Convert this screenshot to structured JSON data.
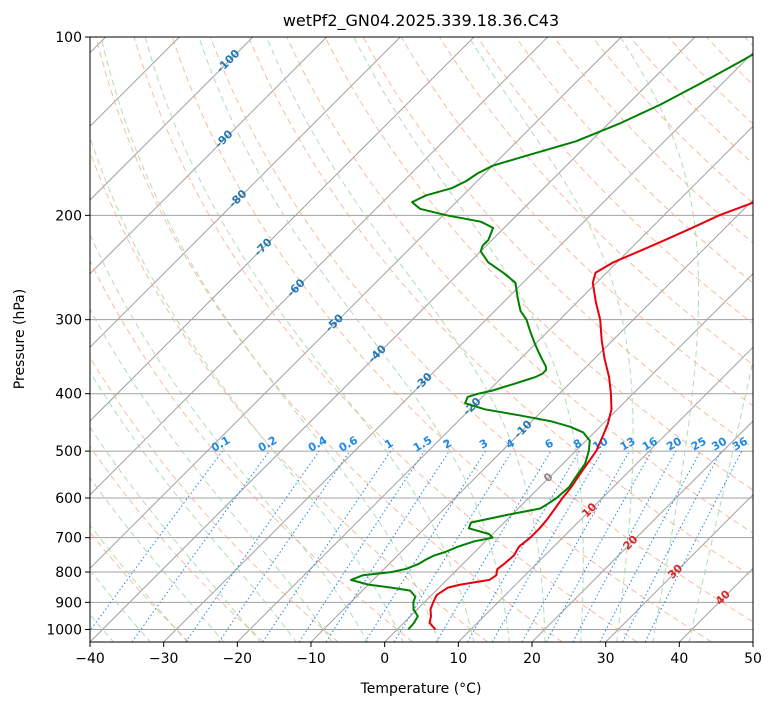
{
  "chart_data": {
    "type": "line",
    "title": "wetPf2_GN04.2025.339.18.36.C43",
    "xlabel": "Temperature (°C)",
    "ylabel": "Pressure (hPa)",
    "xlim": [
      -40,
      50
    ],
    "ylim": [
      1050,
      100
    ],
    "y_scale": "log",
    "grid": true,
    "x_ticks": [
      "−40",
      "−30",
      "−20",
      "−10",
      "0",
      "10",
      "20",
      "30",
      "40",
      "50"
    ],
    "y_ticks": [
      "100",
      "200",
      "300",
      "400",
      "500",
      "600",
      "700",
      "800",
      "900",
      "1000"
    ],
    "colors": {
      "temperature": "#e8000b",
      "dewpoint": "#008000",
      "isotherm": "#a0a0a0",
      "dry_adiabat": "#f4a582",
      "moist_adiabat": "#9fd49f",
      "mixing_ratio": "#1e88e5",
      "dry_label": "#d62728",
      "moist_label": "#1f77b4"
    },
    "series": [
      {
        "p": [
          1000,
          975,
          950,
          925,
          900,
          875,
          850,
          840,
          825,
          810,
          800,
          790,
          775,
          750,
          725,
          700,
          675,
          650,
          625,
          600,
          575,
          550,
          525,
          500,
          475,
          450,
          425,
          400,
          375,
          350,
          325,
          300,
          280,
          260,
          250,
          240,
          230,
          220,
          210,
          200,
          190,
          180,
          170,
          160,
          150,
          140,
          130,
          120,
          110,
          100
        ],
        "t": [
          5.2,
          3.5,
          2.8,
          1.8,
          1.2,
          0.7,
          1.2,
          2.5,
          5.8,
          6.1,
          5.7,
          5.4,
          5.6,
          5.8,
          5.3,
          5.6,
          5.6,
          5.4,
          5.0,
          4.6,
          4.3,
          3.8,
          3.3,
          2.8,
          1.8,
          0.7,
          -0.8,
          -3.0,
          -5.5,
          -8.5,
          -11.5,
          -14.5,
          -17.5,
          -20.5,
          -21.5,
          -20.5,
          -18.5,
          -16.5,
          -14.5,
          -12.5,
          -9.5,
          -6.5,
          -4.0,
          -2.0,
          -0.5,
          0.5,
          1.2,
          1.8,
          2.2,
          2.5
        ]
      },
      {
        "p": [
          1000,
          975,
          950,
          925,
          900,
          880,
          860,
          850,
          840,
          825,
          810,
          800,
          790,
          775,
          760,
          750,
          740,
          725,
          710,
          700,
          690,
          675,
          660,
          650,
          640,
          625,
          610,
          600,
          575,
          550,
          525,
          500,
          480,
          465,
          455,
          445,
          435,
          425,
          415,
          405,
          400,
          395,
          390,
          385,
          380,
          375,
          370,
          365,
          360,
          350,
          340,
          330,
          320,
          310,
          300,
          290,
          280,
          270,
          260,
          250,
          240,
          230,
          225,
          220,
          210,
          205,
          200,
          195,
          190,
          185,
          180,
          175,
          170,
          165,
          160,
          150,
          140,
          130,
          120,
          110,
          100
        ],
        "td": [
          1.5,
          1.4,
          1.0,
          -0.5,
          -1.5,
          -2.0,
          -3.5,
          -6.5,
          -10.0,
          -13.0,
          -12.0,
          -8.5,
          -7.0,
          -6.0,
          -5.5,
          -5.0,
          -4.0,
          -3.0,
          -1.5,
          0.5,
          -0.5,
          -4.0,
          -4.5,
          -2.5,
          -0.5,
          3.0,
          3.5,
          3.8,
          4.0,
          3.5,
          3.0,
          1.8,
          0.5,
          -1.5,
          -4.0,
          -7.5,
          -12.5,
          -18.0,
          -21.5,
          -22.0,
          -21.0,
          -19.5,
          -18.5,
          -17.5,
          -16.5,
          -15.5,
          -15.0,
          -15.0,
          -15.5,
          -17.0,
          -18.5,
          -20.0,
          -21.5,
          -23.0,
          -24.5,
          -26.5,
          -28.0,
          -29.5,
          -31.0,
          -34.0,
          -37.5,
          -40.0,
          -40.5,
          -40.5,
          -41.5,
          -44.0,
          -49.5,
          -54.0,
          -56.0,
          -55.0,
          -52.5,
          -51.5,
          -51.0,
          -50.0,
          -47.5,
          -42.0,
          -38.5,
          -35.5,
          -33.0,
          -30.5,
          -28.0
        ]
      }
    ],
    "annotations": {
      "mixing_ratio_labels": [
        "0.1",
        "0.2",
        "0.4",
        "0.6",
        "1",
        "1.5",
        "2",
        "3",
        "4",
        "6",
        "8",
        "10",
        "13",
        "16",
        "20",
        "25",
        "30",
        "36"
      ],
      "mixing_ratio_values": [
        0.1,
        0.2,
        0.4,
        0.6,
        1,
        1.5,
        2,
        3,
        4,
        6,
        8,
        10,
        13,
        16,
        20,
        25,
        30,
        36
      ],
      "moist_adiabat_labels": [
        "-100",
        "-90",
        "-80",
        "-70",
        "-60",
        "-50",
        "-40",
        "-30",
        "-20",
        "-10",
        "0"
      ],
      "moist_adiabat_values": [
        -100,
        -90,
        -80,
        -70,
        -60,
        -50,
        -40,
        -30,
        -20,
        -10,
        0
      ],
      "dry_adiabat_labels": [
        "10",
        "20",
        "30",
        "40"
      ],
      "dry_adiabat_values": [
        10,
        20,
        30,
        40
      ]
    }
  }
}
